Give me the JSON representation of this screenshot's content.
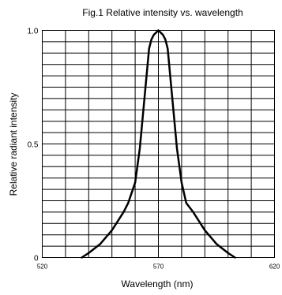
{
  "chart_data": {
    "type": "line",
    "title": "Fig.1 Relative intensity vs. wavelength",
    "xlabel": "Wavelength (nm)",
    "ylabel": "Relative radiant intensity",
    "xlim": [
      520,
      620
    ],
    "ylim": [
      0,
      1.0
    ],
    "x_ticks": [
      {
        "value": 520,
        "label": "520"
      },
      {
        "value": 570,
        "label": "570"
      },
      {
        "value": 620,
        "label": "620"
      }
    ],
    "y_ticks": [
      {
        "value": 0,
        "label": "0"
      },
      {
        "value": 0.5,
        "label": "0.5"
      },
      {
        "value": 1.0,
        "label": "1.0"
      }
    ],
    "grid": true,
    "grid_x_divisions": 10,
    "grid_y_divisions": 20,
    "line_color": "#000000",
    "series": [
      {
        "x": [
          537,
          540,
          545,
          550,
          555,
          557,
          560,
          562,
          564,
          566,
          567,
          568,
          569,
          570,
          571,
          572,
          573,
          574,
          576,
          578,
          580,
          582,
          585,
          590,
          595,
          600,
          603
        ],
        "y": [
          0.0,
          0.02,
          0.06,
          0.12,
          0.2,
          0.24,
          0.33,
          0.48,
          0.7,
          0.92,
          0.96,
          0.98,
          0.99,
          1.0,
          0.99,
          0.98,
          0.96,
          0.92,
          0.7,
          0.48,
          0.33,
          0.24,
          0.2,
          0.12,
          0.06,
          0.02,
          0.0
        ]
      }
    ]
  }
}
